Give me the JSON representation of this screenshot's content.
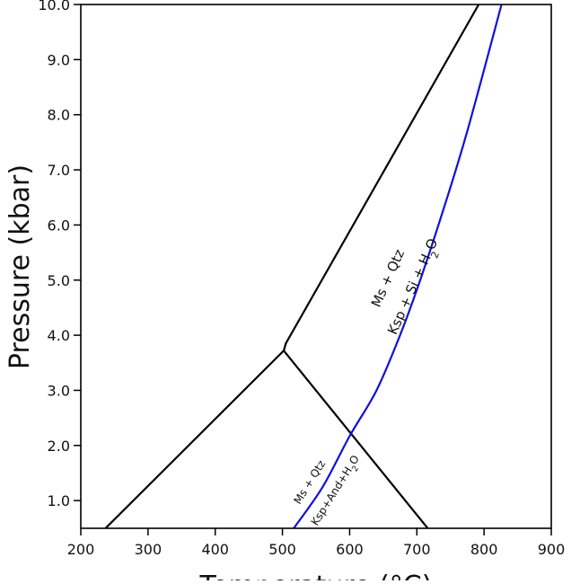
{
  "chart_data": {
    "type": "line",
    "title": "",
    "xlabel": "Temperature (°C)",
    "ylabel": "Pressure (kbar)",
    "xlim": [
      200,
      900
    ],
    "ylim": [
      0.5,
      10.0
    ],
    "xticks": [
      "200",
      "300",
      "400",
      "500",
      "600",
      "700",
      "800",
      "900"
    ],
    "yticks": [
      "1.0",
      "2.0",
      "3.0",
      "4.0",
      "5.0",
      "6.0",
      "7.0",
      "8.0",
      "9.0",
      "10.0"
    ],
    "grid": false,
    "series": [
      {
        "color": "#000000",
        "points": [
          [
            237,
            0.5
          ],
          [
            502,
            3.72
          ]
        ]
      },
      {
        "color": "#000000",
        "points": [
          [
            502,
            3.72
          ],
          [
            505,
            3.85
          ],
          [
            792,
            10.0
          ]
        ]
      },
      {
        "color": "#000000",
        "points": [
          [
            502,
            3.72
          ],
          [
            716,
            0.5
          ]
        ]
      },
      {
        "color": "#1010dd",
        "points": [
          [
            517,
            0.5
          ],
          [
            560,
            1.25
          ],
          [
            600,
            2.17
          ],
          [
            640,
            3.0
          ],
          [
            675,
            4.0
          ],
          [
            705,
            5.0
          ],
          [
            740,
            6.3
          ],
          [
            775,
            7.7
          ],
          [
            826,
            10.0
          ]
        ]
      }
    ],
    "annotations": [
      {
        "text": "Ms + Qtz",
        "x": 663,
        "y": 5.0,
        "angle": -66
      },
      {
        "text": "Ksp + Si + H2O",
        "x": 700,
        "y": 4.85,
        "angle": -66
      },
      {
        "text": "Ms + Qtz",
        "x": 545,
        "y": 1.3,
        "angle": -58
      },
      {
        "text": "Ksp+And+H2O",
        "x": 583,
        "y": 1.15,
        "angle": -58
      }
    ]
  }
}
